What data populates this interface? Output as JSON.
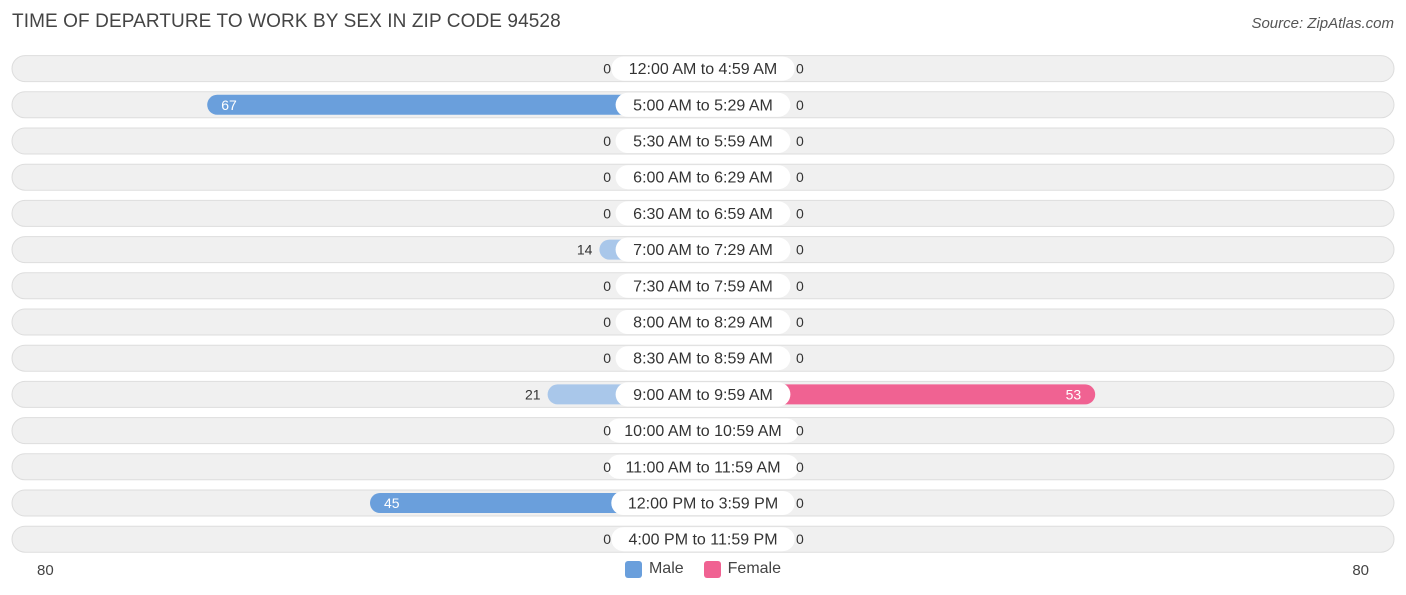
{
  "title": "TIME OF DEPARTURE TO WORK BY SEX IN ZIP CODE 94528",
  "source": "Source: ZipAtlas.com",
  "colors": {
    "male_strong": "#6a9fdc",
    "male_light": "#a9c7ea",
    "female_strong": "#f06292",
    "female_light": "#f5a9c2",
    "row_bg": "#f0f0f0",
    "row_border": "#dddddd"
  },
  "legend": {
    "male": "Male",
    "female": "Female"
  },
  "axis": {
    "left_label": "80",
    "right_label": "80"
  },
  "chart_data": {
    "type": "bar",
    "orientation": "horizontal-diverging",
    "xlim": [
      -80,
      80
    ],
    "categories": [
      "12:00 AM to 4:59 AM",
      "5:00 AM to 5:29 AM",
      "5:30 AM to 5:59 AM",
      "6:00 AM to 6:29 AM",
      "6:30 AM to 6:59 AM",
      "7:00 AM to 7:29 AM",
      "7:30 AM to 7:59 AM",
      "8:00 AM to 8:29 AM",
      "8:30 AM to 8:59 AM",
      "9:00 AM to 9:59 AM",
      "10:00 AM to 10:59 AM",
      "11:00 AM to 11:59 AM",
      "12:00 PM to 3:59 PM",
      "4:00 PM to 11:59 PM"
    ],
    "series": [
      {
        "name": "Male",
        "values": [
          0,
          67,
          0,
          0,
          0,
          14,
          0,
          0,
          0,
          21,
          0,
          0,
          45,
          0
        ]
      },
      {
        "name": "Female",
        "values": [
          0,
          0,
          0,
          0,
          0,
          0,
          0,
          0,
          0,
          53,
          0,
          0,
          0,
          0
        ]
      }
    ]
  }
}
